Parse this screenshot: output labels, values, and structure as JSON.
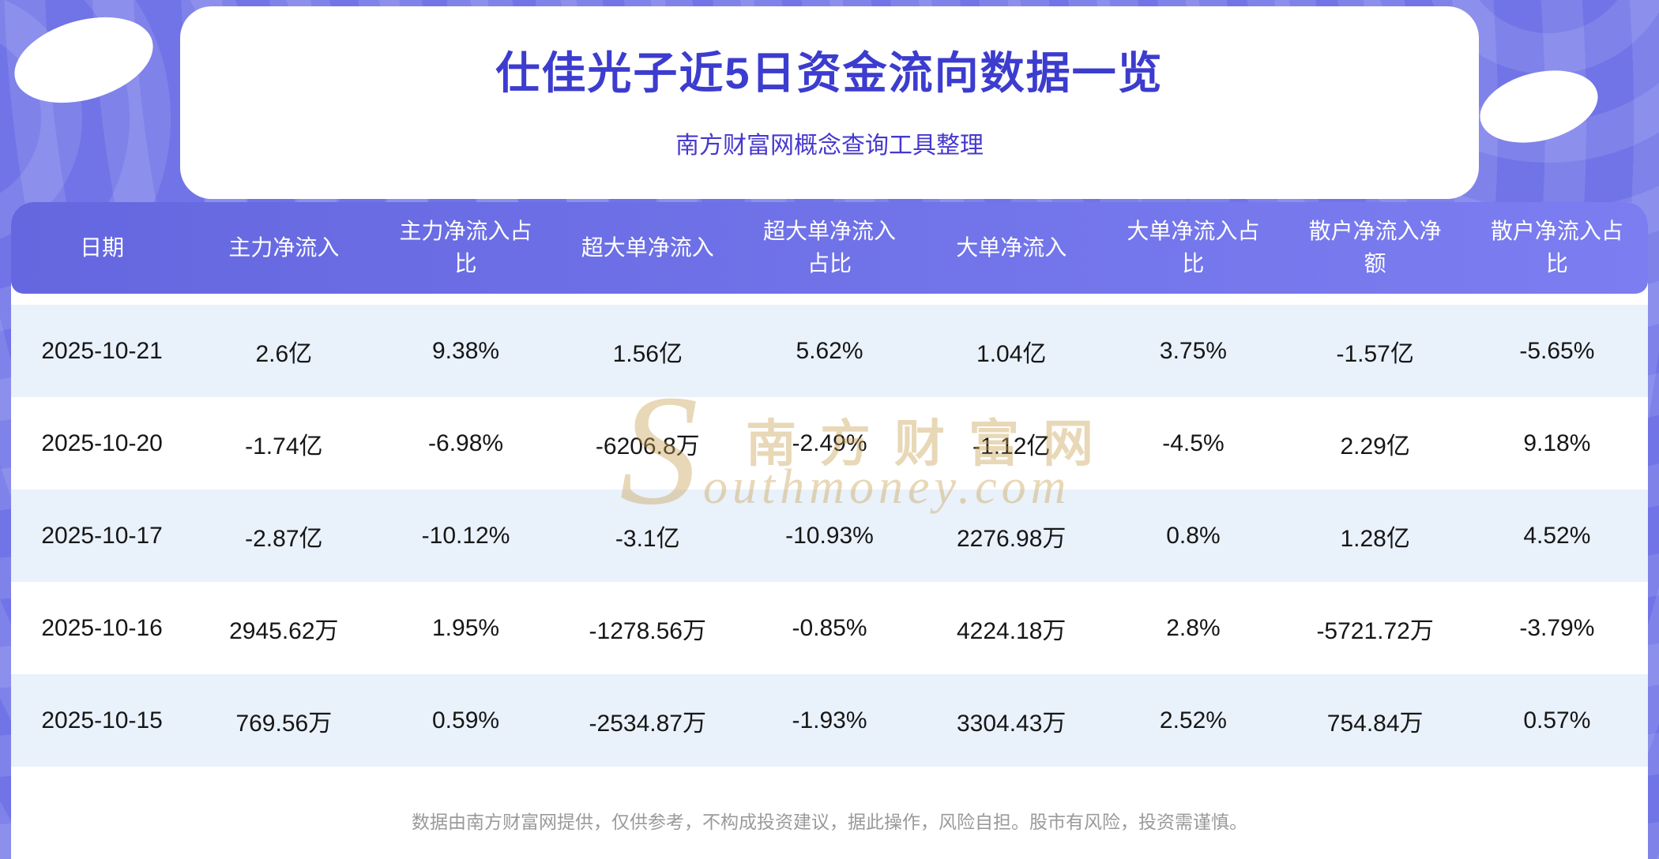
{
  "header": {
    "title": "仕佳光子近5日资金流向数据一览",
    "subtitle": "南方财富网概念查询工具整理"
  },
  "watermark": {
    "brand_cn": "南方财富网",
    "brand_en": "Southmoney.com"
  },
  "footer": {
    "disclaimer": "数据由南方财富网提供，仅供参考，不构成投资建议，据此操作，风险自担。股市有风险，投资需谨慎。"
  },
  "chart_data": {
    "type": "table",
    "title": "仕佳光子近5日资金流向数据一览",
    "columns": [
      "日期",
      "主力净流入",
      "主力净流入占比",
      "超大单净流入",
      "超大单净流入占比",
      "大单净流入",
      "大单净流入占比",
      "散户净流入净额",
      "散户净流入占比"
    ],
    "rows": [
      [
        "2025-10-21",
        "2.6亿",
        "9.38%",
        "1.56亿",
        "5.62%",
        "1.04亿",
        "3.75%",
        "-1.57亿",
        "-5.65%"
      ],
      [
        "2025-10-20",
        "-1.74亿",
        "-6.98%",
        "-6206.8万",
        "-2.49%",
        "-1.12亿",
        "-4.5%",
        "2.29亿",
        "9.18%"
      ],
      [
        "2025-10-17",
        "-2.87亿",
        "-10.12%",
        "-3.1亿",
        "-10.93%",
        "2276.98万",
        "0.8%",
        "1.28亿",
        "4.52%"
      ],
      [
        "2025-10-16",
        "2945.62万",
        "1.95%",
        "-1278.56万",
        "-0.85%",
        "4224.18万",
        "2.8%",
        "-5721.72万",
        "-3.79%"
      ],
      [
        "2025-10-15",
        "769.56万",
        "0.59%",
        "-2534.87万",
        "-1.93%",
        "3304.43万",
        "2.52%",
        "754.84万",
        "0.57%"
      ]
    ]
  },
  "colors": {
    "page_background": "#7174e7",
    "header_bar_start": "#6567e0",
    "header_bar_end": "#7b7df0",
    "title_text": "#3c3ccf",
    "subtitle_text": "#4638cf",
    "row_alternate": "#e9f1fb",
    "body_text": "#161616",
    "watermark_gold": "#c7a254",
    "footer_text": "#9a9a9a"
  }
}
